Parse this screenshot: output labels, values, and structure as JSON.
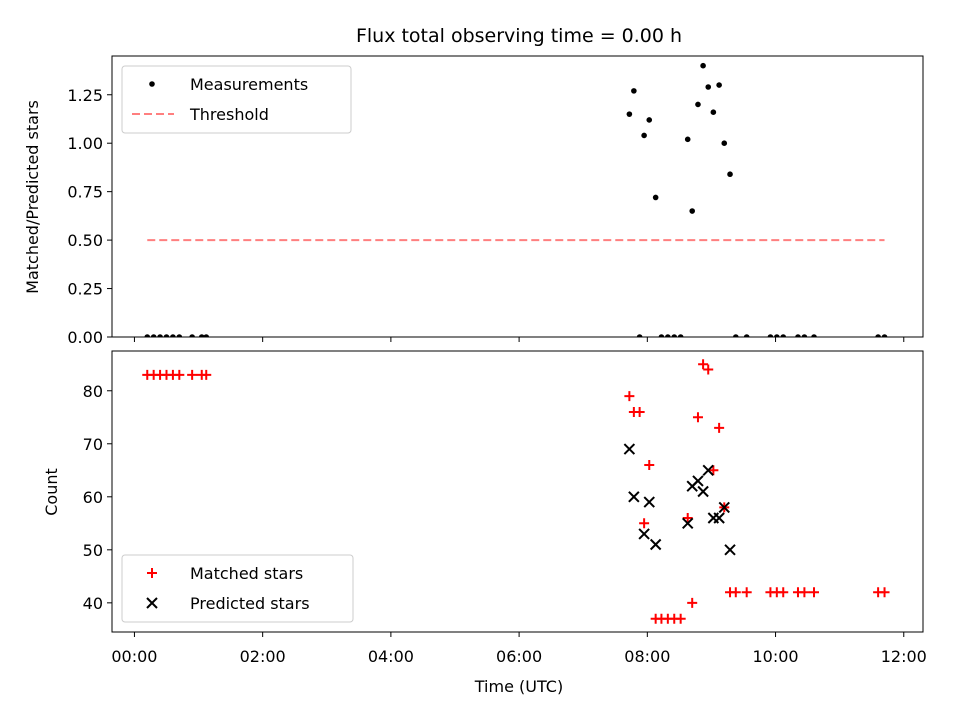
{
  "chart_data": [
    {
      "type": "scatter",
      "title": "Flux total observing time = 0.00 h",
      "xlabel": "",
      "ylabel": "Matched/Predicted stars",
      "xlim": [
        -0.35,
        12.3
      ],
      "ylim": [
        0.0,
        1.45
      ],
      "yticks": [
        0.0,
        0.25,
        0.5,
        0.75,
        1.0,
        1.25
      ],
      "ytick_labels": [
        "0.00",
        "0.25",
        "0.50",
        "0.75",
        "1.00",
        "1.25"
      ],
      "legend_position": "top-left",
      "series": [
        {
          "name": "Measurements",
          "marker": "dot",
          "color": "#000000",
          "x": [
            0.2,
            0.3,
            0.4,
            0.5,
            0.6,
            0.7,
            0.9,
            1.05,
            1.12,
            7.72,
            7.79,
            7.88,
            7.95,
            8.03,
            8.13,
            8.22,
            8.32,
            8.42,
            8.52,
            8.63,
            8.7,
            8.79,
            8.87,
            8.95,
            9.03,
            9.12,
            9.2,
            9.29,
            9.38,
            9.55,
            9.92,
            10.02,
            10.12,
            10.35,
            10.45,
            10.6,
            11.6,
            11.7
          ],
          "y": [
            0.0,
            0.0,
            0.0,
            0.0,
            0.0,
            0.0,
            0.0,
            0.0,
            0.0,
            1.15,
            1.27,
            0.0,
            1.04,
            1.12,
            0.72,
            0.0,
            0.0,
            0.0,
            0.0,
            1.02,
            0.65,
            1.2,
            1.4,
            1.29,
            1.16,
            1.3,
            1.0,
            0.84,
            0.0,
            0.0,
            0.0,
            0.0,
            0.0,
            0.0,
            0.0,
            0.0,
            0.0,
            0.0
          ]
        },
        {
          "name": "Threshold",
          "style": "dashed",
          "color": "#ff7f7f",
          "x": [
            0.2,
            11.7
          ],
          "y": [
            0.5,
            0.5
          ]
        }
      ]
    },
    {
      "type": "scatter",
      "title": "",
      "xlabel": "Time (UTC)",
      "ylabel": "Count",
      "xlim": [
        -0.35,
        12.3
      ],
      "ylim": [
        34.5,
        87.5
      ],
      "xticks": [
        0,
        2,
        4,
        6,
        8,
        10,
        12
      ],
      "xtick_labels": [
        "00:00",
        "02:00",
        "04:00",
        "06:00",
        "08:00",
        "10:00",
        "12:00"
      ],
      "yticks": [
        40,
        50,
        60,
        70,
        80
      ],
      "ytick_labels": [
        "40",
        "50",
        "60",
        "70",
        "80"
      ],
      "legend_position": "bottom-left",
      "series": [
        {
          "name": "Matched stars",
          "marker": "plus",
          "color": "#ff0000",
          "x": [
            0.2,
            0.3,
            0.4,
            0.5,
            0.6,
            0.7,
            0.9,
            1.05,
            1.12,
            7.72,
            7.79,
            7.88,
            7.95,
            8.03,
            8.13,
            8.22,
            8.32,
            8.42,
            8.52,
            8.63,
            8.7,
            8.79,
            8.87,
            8.95,
            9.03,
            9.12,
            9.2,
            9.29,
            9.38,
            9.55,
            9.92,
            10.02,
            10.12,
            10.35,
            10.45,
            10.6,
            11.6,
            11.7
          ],
          "y": [
            83,
            83,
            83,
            83,
            83,
            83,
            83,
            83,
            83,
            79,
            76,
            76,
            55,
            66,
            37,
            37,
            37,
            37,
            37,
            56,
            40,
            75,
            85,
            84,
            65,
            73,
            58,
            42,
            42,
            42,
            42,
            42,
            42,
            42,
            42,
            42,
            42,
            42
          ]
        },
        {
          "name": "Predicted stars",
          "marker": "x",
          "color": "#000000",
          "x": [
            7.72,
            7.79,
            7.95,
            8.03,
            8.13,
            8.63,
            8.7,
            8.79,
            8.87,
            8.95,
            9.03,
            9.12,
            9.2,
            9.29
          ],
          "y": [
            69,
            60,
            53,
            59,
            51,
            55,
            62,
            63,
            61,
            65,
            56,
            56,
            58,
            50
          ]
        }
      ]
    }
  ]
}
